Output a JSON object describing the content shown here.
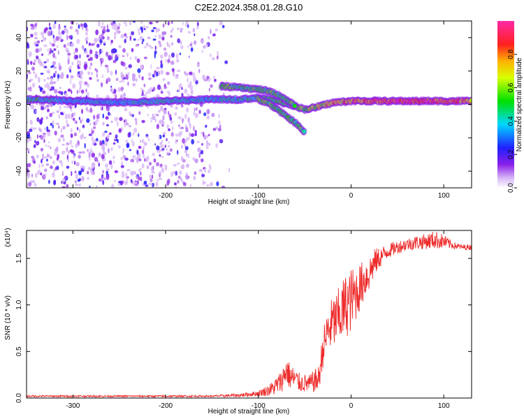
{
  "title": "C2E2.2024.358.01.28.G10",
  "colors": {
    "snr_line": "#ee2a2a",
    "frame": "#000000",
    "dot_purple": "#7b1fe0"
  },
  "chart_data": [
    {
      "type": "heatmap",
      "title": "C2E2.2024.358.01.28.G10",
      "xlabel": "Height of straight line (km)",
      "ylabel": "Frequency (Hz)",
      "xlim": [
        -350,
        130
      ],
      "ylim": [
        -50,
        50
      ],
      "x_ticks": [
        -300,
        -200,
        -100,
        0,
        100
      ],
      "y_ticks": [
        -40,
        -20,
        0,
        20,
        40
      ],
      "colorbar": {
        "label": "Normalized spectral amplitude",
        "range": [
          0,
          1
        ],
        "ticks": [
          "0.0",
          "0.2",
          "0.4",
          "0.6",
          "0.8"
        ],
        "colormap": "rainbow: white-violet, violet, blue, cyan, green, yellow, orange, red, magenta"
      },
      "ridges": [
        {
          "name": "main doppler trace",
          "x": [
            -350,
            -300,
            -250,
            -200,
            -150,
            -120,
            -100,
            -80,
            -60,
            -50,
            -40,
            -20,
            0,
            20,
            50,
            80,
            100,
            130
          ],
          "y": [
            3,
            2,
            1,
            2,
            3,
            3,
            4,
            2,
            -1,
            -3,
            -2,
            1,
            2,
            2,
            2,
            2,
            2,
            2
          ],
          "peak_amplitude": [
            0.5,
            0.4,
            0.4,
            0.45,
            0.4,
            0.45,
            0.5,
            0.5,
            0.6,
            0.6,
            0.7,
            0.8,
            0.85,
            0.9,
            0.95,
            0.95,
            0.9,
            0.85
          ]
        },
        {
          "name": "upper branch",
          "x": [
            -140,
            -120,
            -100,
            -90,
            -80,
            -70,
            -60
          ],
          "y": [
            11,
            10,
            9,
            8,
            6,
            3,
            -1
          ]
        },
        {
          "name": "lower branch",
          "x": [
            -100,
            -90,
            -80,
            -70,
            -60,
            -55,
            -50
          ],
          "y": [
            3,
            1,
            -3,
            -7,
            -11,
            -14,
            -17
          ]
        }
      ],
      "background_scatter": {
        "description": "scattered low-amplitude purple noise over the full frequency range",
        "x_range": [
          -350,
          -130
        ],
        "y_range": [
          -50,
          50
        ],
        "amplitude_range": [
          0.05,
          0.25
        ]
      }
    },
    {
      "type": "line",
      "xlabel": "Height of straight line (km)",
      "ylabel": "SNR (10 * v/v)",
      "y_multiplier": "(x10⁴)",
      "xlim": [
        -350,
        130
      ],
      "ylim": [
        0,
        1.8
      ],
      "x_ticks": [
        -300,
        -200,
        -100,
        0,
        100
      ],
      "y_ticks": [
        "0.0",
        "0.5",
        "1.0",
        "1.5"
      ],
      "series": [
        {
          "x": [
            -350,
            -250,
            -200,
            -150,
            -120,
            -100,
            -90,
            -85,
            -80,
            -75,
            -70,
            -65,
            -60,
            -55,
            -50,
            -45,
            -40,
            -35,
            -30,
            -25,
            -20,
            -15,
            -10,
            -5,
            0,
            5,
            10,
            15,
            20,
            25,
            30,
            40,
            50,
            60,
            70,
            80,
            90,
            100,
            110,
            120,
            130
          ],
          "y": [
            0.02,
            0.02,
            0.02,
            0.02,
            0.03,
            0.05,
            0.08,
            0.1,
            0.14,
            0.18,
            0.3,
            0.22,
            0.2,
            0.16,
            0.16,
            0.15,
            0.18,
            0.2,
            0.55,
            0.72,
            0.8,
            0.85,
            0.92,
            1.0,
            1.05,
            1.12,
            1.2,
            1.28,
            1.35,
            1.45,
            1.5,
            1.58,
            1.62,
            1.65,
            1.67,
            1.68,
            1.7,
            1.68,
            1.64,
            1.62,
            1.62
          ],
          "noise": [
            0.01,
            0.01,
            0.01,
            0.01,
            0.02,
            0.03,
            0.06,
            0.08,
            0.1,
            0.12,
            0.15,
            0.15,
            0.12,
            0.1,
            0.1,
            0.1,
            0.12,
            0.15,
            0.2,
            0.25,
            0.3,
            0.3,
            0.35,
            0.35,
            0.35,
            0.3,
            0.25,
            0.22,
            0.2,
            0.15,
            0.12,
            0.08,
            0.07,
            0.07,
            0.08,
            0.08,
            0.1,
            0.08,
            0.04,
            0.03,
            0.03
          ]
        }
      ]
    }
  ]
}
